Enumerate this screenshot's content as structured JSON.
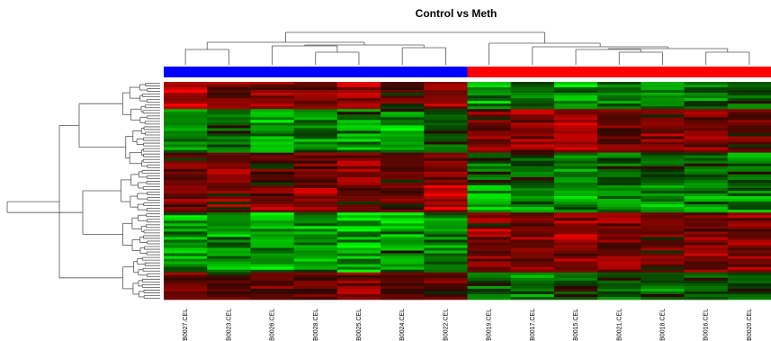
{
  "chart_data": {
    "type": "heatmap",
    "title": "Control vs Meth",
    "xlabel": "",
    "ylabel": "",
    "columns": [
      "PB0027.CEL",
      "PB0023.CEL",
      "PB0026.CEL",
      "PB0028.CEL",
      "PB0025.CEL",
      "PB0024.CEL",
      "PB0022.CEL",
      "PB0019.CEL",
      "PB0017.CEL",
      "PB0015.CEL",
      "PB0021.CEL",
      "PB0018.CEL",
      "PB0016.CEL",
      "PB0020.CEL"
    ],
    "groups": [
      {
        "color": "#0000ff",
        "columns": [
          "PB0027.CEL",
          "PB0023.CEL",
          "PB0026.CEL",
          "PB0028.CEL",
          "PB0025.CEL",
          "PB0024.CEL",
          "PB0022.CEL"
        ]
      },
      {
        "color": "#ff0000",
        "columns": [
          "PB0019.CEL",
          "PB0017.CEL",
          "PB0015.CEL",
          "PB0021.CEL",
          "PB0018.CEL",
          "PB0016.CEL",
          "PB0020.CEL"
        ]
      }
    ],
    "color_scale": {
      "low": "#00ff00",
      "mid": "#000000",
      "high": "#ff0000"
    },
    "row_blocks": [
      {
        "rows": 10,
        "values": [
          0.7,
          0.4,
          0.5,
          0.3,
          0.6,
          0.2,
          0.5,
          -0.6,
          -0.4,
          -0.7,
          -0.3,
          -0.5,
          -0.4,
          -0.3
        ]
      },
      {
        "rows": 16,
        "values": [
          -0.5,
          -0.3,
          -0.6,
          -0.4,
          -0.5,
          -0.6,
          -0.2,
          0.4,
          0.5,
          0.5,
          0.3,
          0.4,
          0.5,
          0.3
        ]
      },
      {
        "rows": 12,
        "values": [
          0.3,
          0.4,
          0.2,
          0.3,
          0.5,
          0.3,
          0.4,
          -0.3,
          -0.2,
          -0.4,
          -0.3,
          -0.2,
          -0.3,
          -0.4
        ]
      },
      {
        "rows": 10,
        "values": [
          0.5,
          0.4,
          0.5,
          0.5,
          0.3,
          0.4,
          0.6,
          -0.6,
          -0.5,
          -0.5,
          -0.4,
          -0.5,
          -0.6,
          -0.5
        ]
      },
      {
        "rows": 22,
        "values": [
          -0.6,
          -0.5,
          -0.6,
          -0.5,
          -0.7,
          -0.6,
          -0.4,
          0.5,
          0.4,
          0.5,
          0.4,
          0.3,
          0.4,
          0.5
        ]
      },
      {
        "rows": 10,
        "values": [
          0.3,
          0.2,
          0.3,
          0.2,
          0.4,
          0.3,
          0.3,
          -0.3,
          -0.4,
          -0.2,
          -0.3,
          -0.4,
          -0.3,
          -0.2
        ]
      }
    ],
    "row_dendrogram_leaves": 80
  }
}
